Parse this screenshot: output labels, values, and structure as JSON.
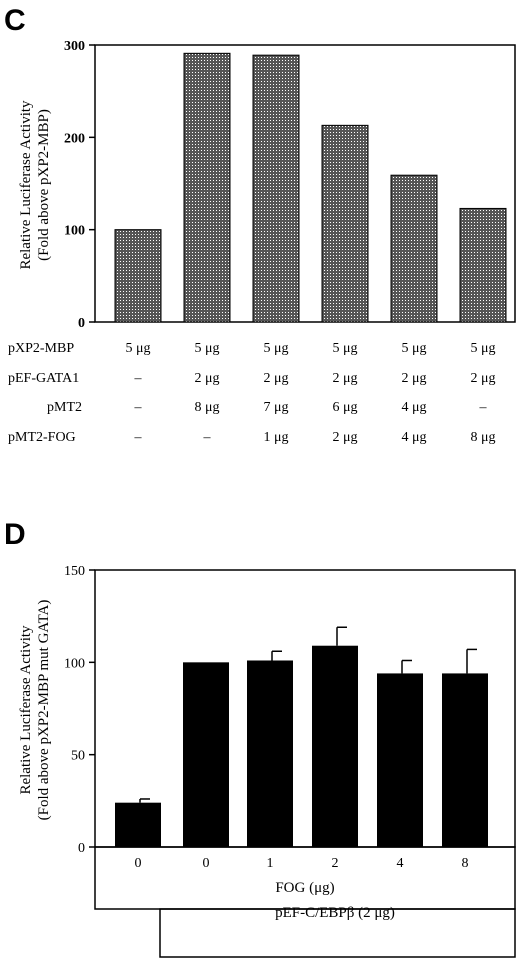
{
  "panels": {
    "c_letter": "C",
    "d_letter": "D"
  },
  "colors": {
    "bar_c": "#555555",
    "bar_d": "#000000"
  },
  "chart_data": [
    {
      "type": "bar",
      "panel": "C",
      "ylabel_line1": "Relative Luciferase Activity",
      "ylabel_line2": "(Fold above pXP2-MBP)",
      "ylim": [
        0,
        300
      ],
      "yticks": [
        "0",
        "100",
        "200",
        "300"
      ],
      "values": [
        100,
        291,
        289,
        213,
        159,
        123
      ],
      "table": {
        "row_labels": [
          "pXP2-MBP",
          "pEF-GATA1",
          "pMT2",
          "pMT2-FOG"
        ],
        "rows": [
          [
            "5 μg",
            "5 μg",
            "5 μg",
            "5 μg",
            "5 μg",
            "5 μg"
          ],
          [
            "–",
            "2 μg",
            "2 μg",
            "2 μg",
            "2 μg",
            "2 μg"
          ],
          [
            "–",
            "8 μg",
            "7 μg",
            "6 μg",
            "4 μg",
            "–"
          ],
          [
            "–",
            "–",
            "1 μg",
            "2 μg",
            "4 μg",
            "8 μg"
          ]
        ]
      }
    },
    {
      "type": "bar",
      "panel": "D",
      "ylabel_line1": "Relative Luciferase Activity",
      "ylabel_line2": "(Fold above pXP2-MBP mut GATA)",
      "ylim": [
        0,
        150
      ],
      "yticks": [
        "0",
        "50",
        "100",
        "150"
      ],
      "categories": [
        "0",
        "0",
        "1",
        "2",
        "4",
        "8"
      ],
      "values": [
        24,
        100,
        101,
        109,
        94,
        94
      ],
      "errors": [
        2,
        0,
        5,
        10,
        7,
        13
      ],
      "xlabel": "FOG (μg)",
      "bottom_label": "pEF-C/EBPβ (2 μg)"
    }
  ]
}
